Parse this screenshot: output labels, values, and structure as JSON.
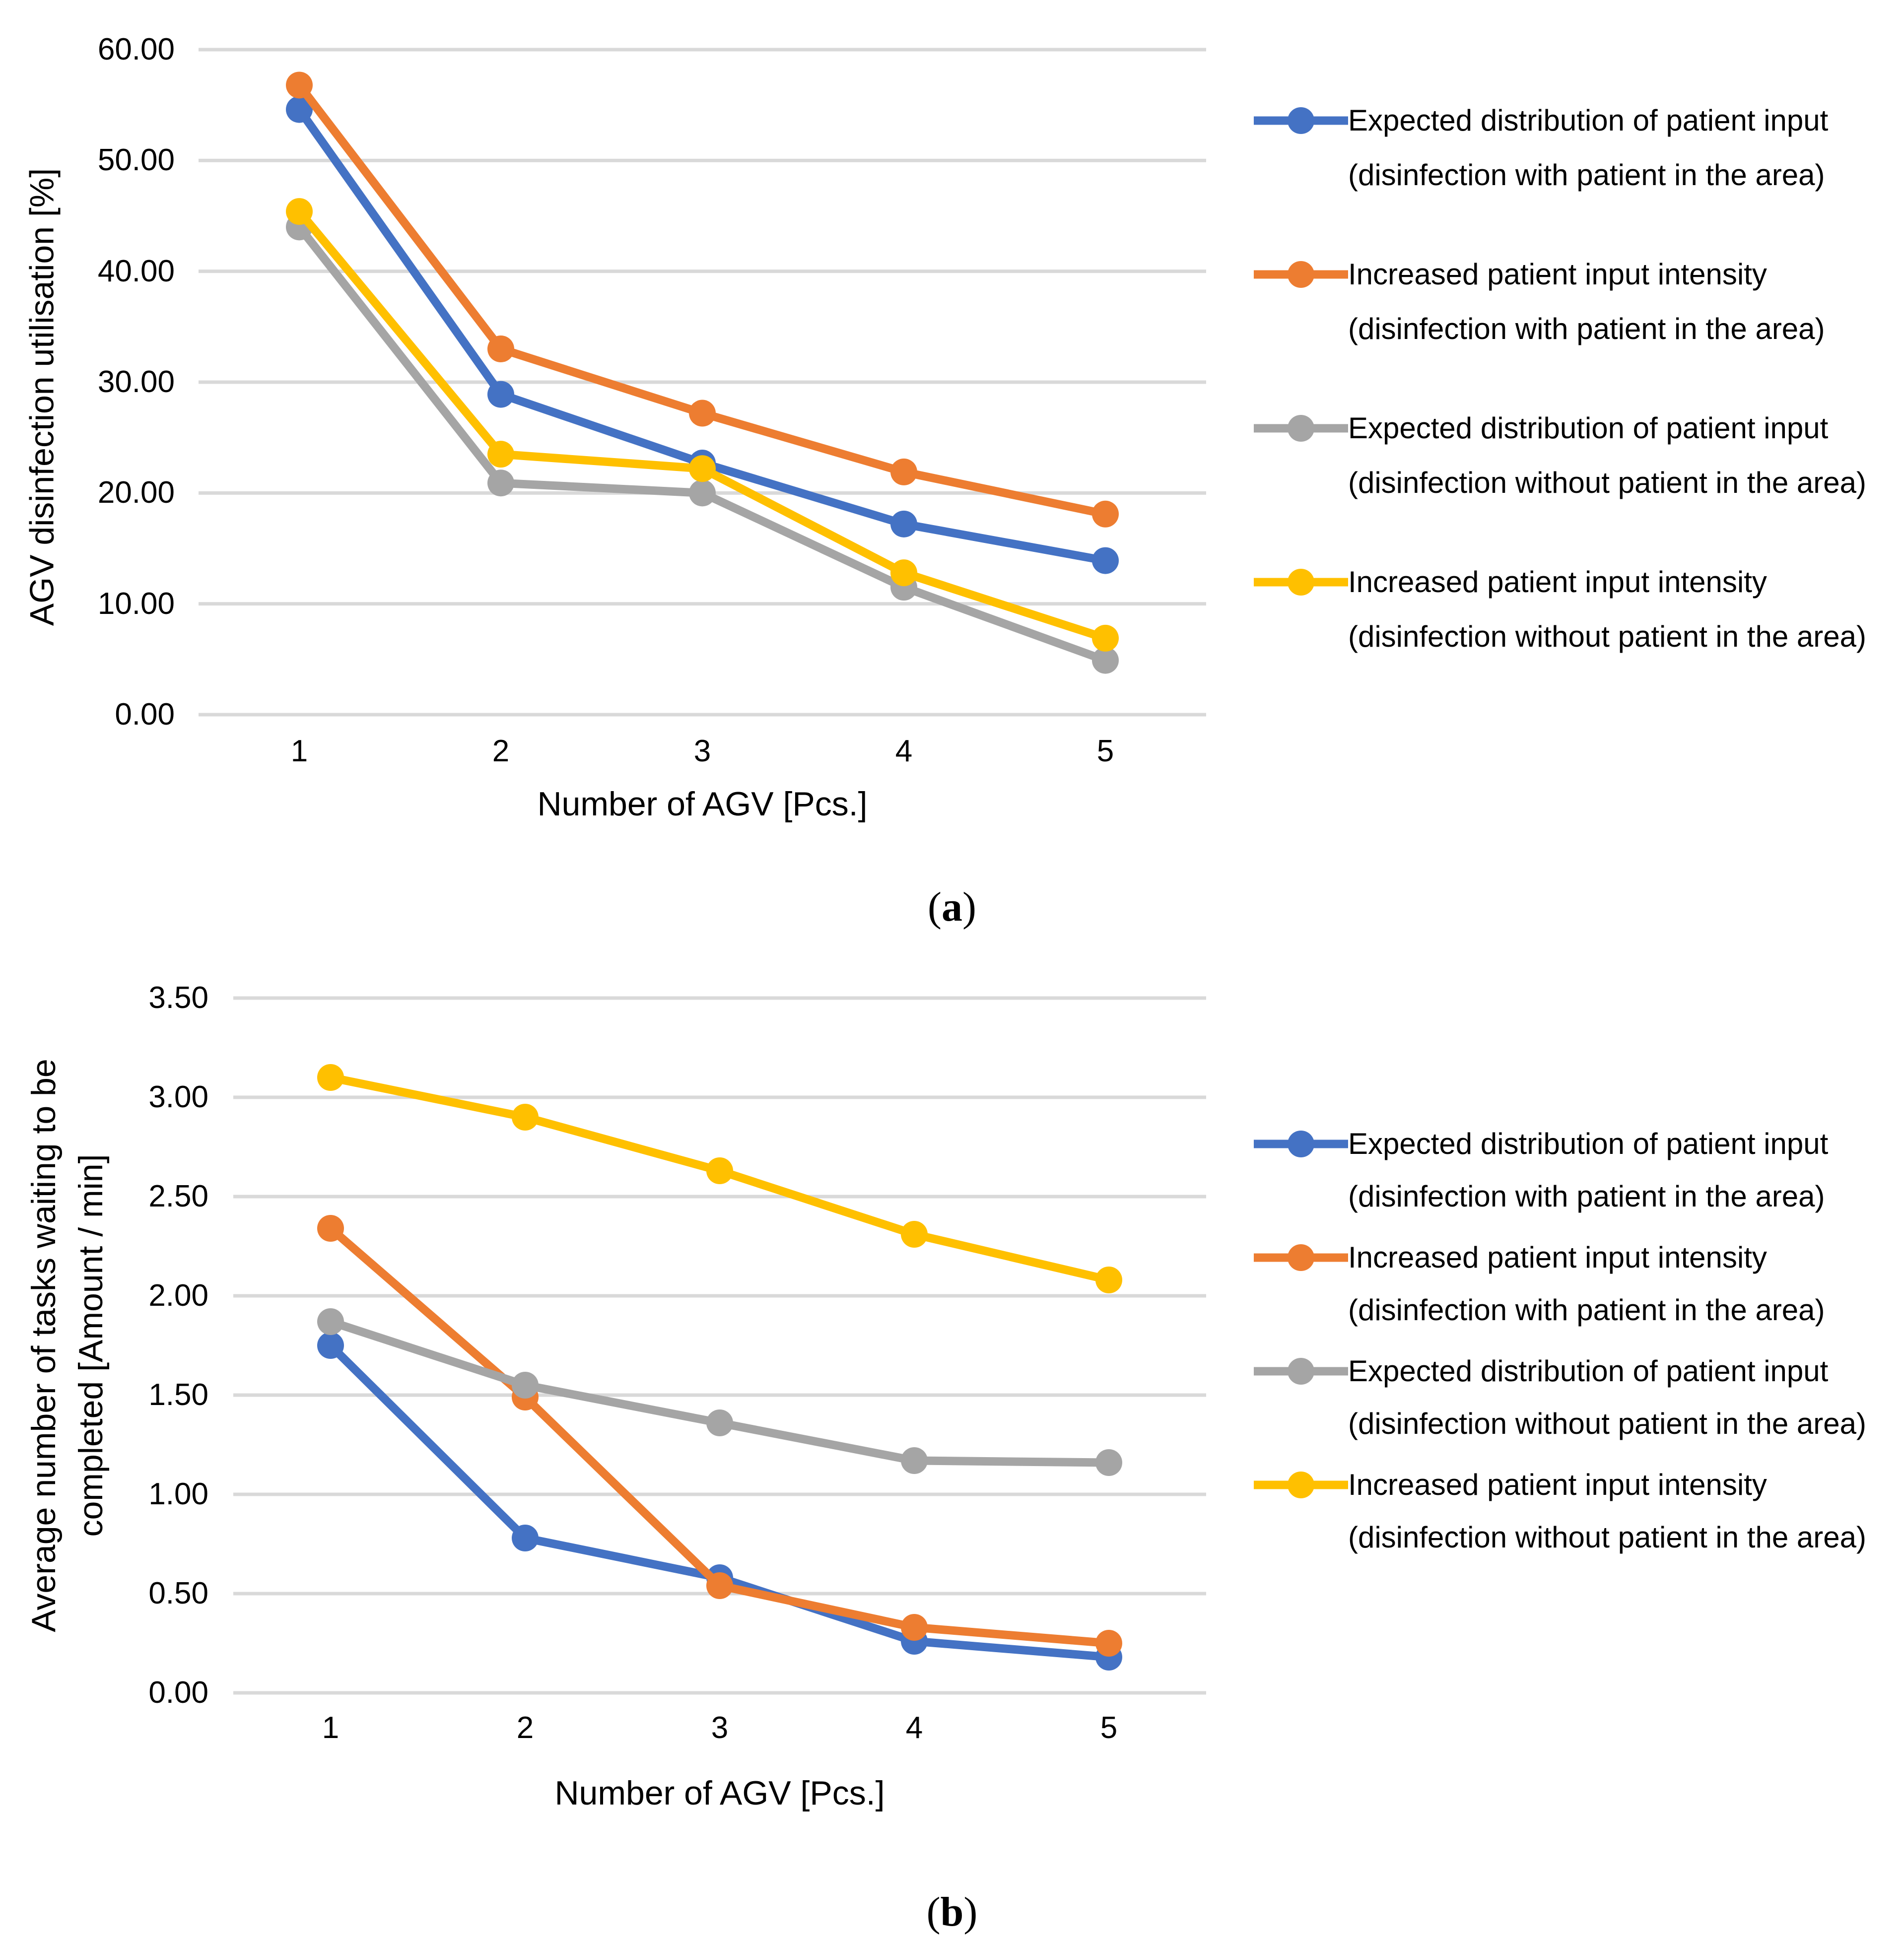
{
  "page_background": "#ffffff",
  "colors": {
    "blue": "#4472C4",
    "orange": "#ED7D31",
    "gray": "#A5A5A5",
    "yellow": "#FFC000",
    "gridline": "#D9D9D9",
    "text": "#000000"
  },
  "chart_data": [
    {
      "id": "a",
      "type": "line",
      "caption": {
        "open": "(",
        "letter": "a",
        "close": ")"
      },
      "xlabel": "Number of AGV [Pcs.]",
      "ylabel": "AGV disinfection utilisation [%]",
      "categories": [
        1,
        2,
        3,
        4,
        5
      ],
      "xticklabels": [
        "1",
        "2",
        "3",
        "4",
        "5"
      ],
      "ylim": [
        0,
        60
      ],
      "yticks": [
        "60.00",
        "50.00",
        "40.00",
        "30.00",
        "20.00",
        "10.00",
        "0.00"
      ],
      "grid": true,
      "legend_position": "right",
      "series": [
        {
          "name": "Expected distribution of patient input  (disinfection with patient in the area)",
          "color_key": "blue",
          "values": [
            54.6,
            28.9,
            22.7,
            17.2,
            13.9
          ]
        },
        {
          "name": "Increased patient input intensity (disinfection with patient in the area)",
          "color_key": "orange",
          "values": [
            56.8,
            33.0,
            27.2,
            21.9,
            18.1
          ]
        },
        {
          "name": "Expected distribution of patient input (disinfection without patient in the area)",
          "color_key": "gray",
          "values": [
            44.0,
            20.9,
            20.0,
            11.5,
            4.9
          ]
        },
        {
          "name": "Increased patient input intensity (disinfection without patient in the area)",
          "color_key": "yellow",
          "values": [
            45.4,
            23.5,
            22.2,
            12.8,
            6.9
          ]
        }
      ]
    },
    {
      "id": "b",
      "type": "line",
      "caption": {
        "open": "(",
        "letter": "b",
        "close": ")"
      },
      "xlabel": "Number of AGV [Pcs.]",
      "ylabel_lines": [
        "Average number of tasks waiting to be",
        "completed [Amount / min]"
      ],
      "categories": [
        1,
        2,
        3,
        4,
        5
      ],
      "xticklabels": [
        "1",
        "2",
        "3",
        "4",
        "5"
      ],
      "ylim": [
        0,
        3.5
      ],
      "yticks": [
        "3.50",
        "3.00",
        "2.50",
        "2.00",
        "1.50",
        "1.00",
        "0.50",
        "0.00"
      ],
      "grid": true,
      "legend_position": "right",
      "series": [
        {
          "name": "Expected distribution of patient input  (disinfection with patient in the area)",
          "color_key": "blue",
          "values": [
            1.75,
            0.78,
            0.58,
            0.26,
            0.18
          ]
        },
        {
          "name": "Increased patient input intensity (disinfection with patient in the area)",
          "color_key": "orange",
          "values": [
            2.34,
            1.49,
            0.54,
            0.33,
            0.25
          ]
        },
        {
          "name": "Expected distribution of patient input (disinfection without patient in the area)",
          "color_key": "gray",
          "values": [
            1.87,
            1.55,
            1.36,
            1.17,
            1.16
          ]
        },
        {
          "name": "Increased patient input intensity (disinfection without patient in the area)",
          "color_key": "yellow",
          "values": [
            3.1,
            2.9,
            2.63,
            2.31,
            2.08
          ]
        }
      ]
    }
  ]
}
